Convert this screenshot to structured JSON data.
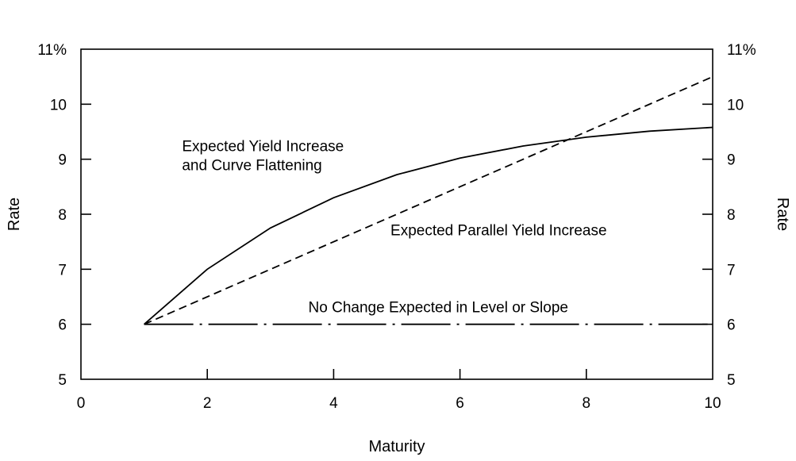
{
  "chart_data": {
    "type": "line",
    "xlabel": "Maturity",
    "ylabel_left": "Rate",
    "ylabel_right": "Rate",
    "xlim": [
      0,
      10
    ],
    "ylim": [
      5,
      11
    ],
    "x_ticks": [
      {
        "value": 0,
        "label": "0"
      },
      {
        "value": 2,
        "label": "2"
      },
      {
        "value": 4,
        "label": "4"
      },
      {
        "value": 6,
        "label": "6"
      },
      {
        "value": 8,
        "label": "8"
      },
      {
        "value": 10,
        "label": "10"
      }
    ],
    "y_ticks_left": [
      {
        "value": 5,
        "label": "5"
      },
      {
        "value": 6,
        "label": "6"
      },
      {
        "value": 7,
        "label": "7"
      },
      {
        "value": 8,
        "label": "8"
      },
      {
        "value": 9,
        "label": "9"
      },
      {
        "value": 10,
        "label": "10"
      },
      {
        "value": 11,
        "label": "11%"
      }
    ],
    "y_ticks_right": [
      {
        "value": 5,
        "label": "5"
      },
      {
        "value": 6,
        "label": "6"
      },
      {
        "value": 7,
        "label": "7"
      },
      {
        "value": 8,
        "label": "8"
      },
      {
        "value": 9,
        "label": "9"
      },
      {
        "value": 10,
        "label": "10"
      },
      {
        "value": 11,
        "label": "11%"
      }
    ],
    "grid": false,
    "series": [
      {
        "style": "solid",
        "x": [
          1,
          2,
          3,
          4,
          5,
          6,
          7,
          8,
          9,
          10
        ],
        "y": [
          6.0,
          7.0,
          7.75,
          8.3,
          8.72,
          9.02,
          9.24,
          9.4,
          9.51,
          9.58
        ]
      },
      {
        "style": "dashed",
        "x": [
          1,
          10
        ],
        "y": [
          6.0,
          10.5
        ]
      },
      {
        "style": "dash-dot",
        "x": [
          1,
          10
        ],
        "y": [
          6.0,
          6.0
        ]
      }
    ],
    "annotations": [
      {
        "id": "flattening-line1",
        "text": "Expected Yield Increase",
        "x": 1.6,
        "y": 9.15
      },
      {
        "id": "flattening-line2",
        "text": "and Curve Flattening",
        "x": 1.6,
        "y": 8.8
      },
      {
        "id": "parallel",
        "text": "Expected Parallel Yield Increase",
        "x": 4.9,
        "y": 7.62
      },
      {
        "id": "no-change",
        "text": "No Change Expected in Level or Slope",
        "x": 3.6,
        "y": 6.22
      }
    ]
  }
}
